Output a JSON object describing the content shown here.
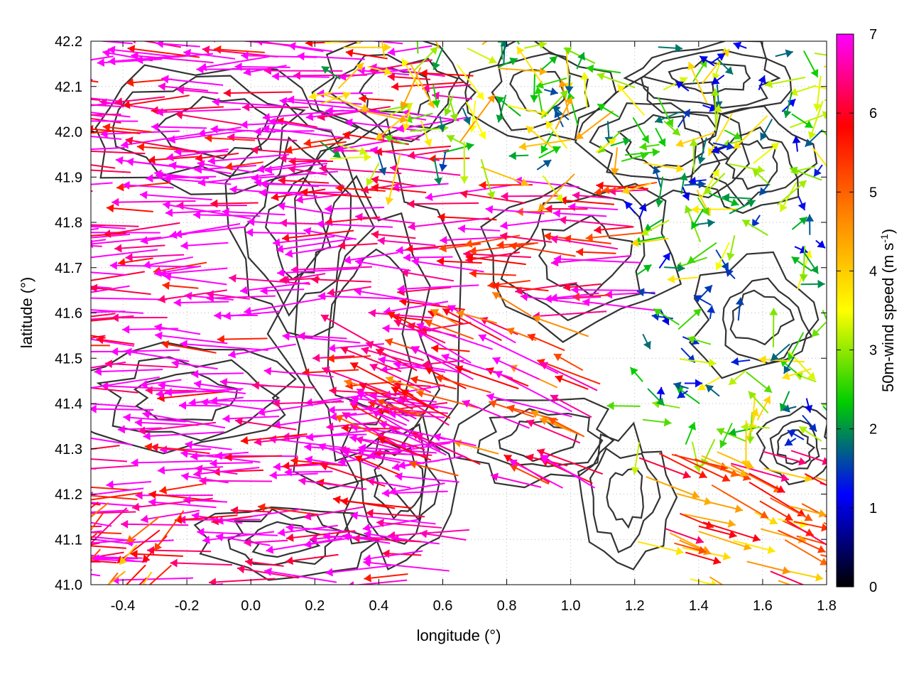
{
  "chart_data": {
    "type": "vector-field",
    "xlabel": "longitude (°)",
    "ylabel": "latitude (°)",
    "xlim": [
      -0.5,
      1.8
    ],
    "ylim": [
      41.0,
      42.2
    ],
    "xticks": [
      "-0.4",
      "-0.2",
      "0.0",
      "0.2",
      "0.4",
      "0.6",
      "0.8",
      "1.0",
      "1.2",
      "1.4",
      "1.6",
      "1.8"
    ],
    "yticks": [
      "41.0",
      "41.1",
      "41.2",
      "41.3",
      "41.4",
      "41.5",
      "41.6",
      "41.7",
      "41.8",
      "41.9",
      "42.0",
      "42.1",
      "42.2"
    ],
    "grid": "dotted",
    "colorbar": {
      "label": "50m-wind speed (m s-1)",
      "range": [
        0,
        7
      ],
      "ticks": [
        "0",
        "1",
        "2",
        "3",
        "4",
        "5",
        "6",
        "7"
      ],
      "colormap": [
        "#000000",
        "#0000ff",
        "#00cc00",
        "#ffff00",
        "#ff8800",
        "#ff0000",
        "#ff00ff"
      ]
    },
    "vector_regions": [
      {
        "lon_range": [
          -0.5,
          0.7
        ],
        "lat_range": [
          41.0,
          42.2
        ],
        "speed_ms": 7,
        "direction": "from east"
      },
      {
        "lon_range": [
          0.7,
          1.3
        ],
        "lat_range": [
          41.6,
          41.9
        ],
        "speed_ms": 6.5,
        "direction": "from east"
      },
      {
        "lon_range": [
          0.4,
          1.1
        ],
        "lat_range": [
          41.2,
          41.6
        ],
        "speed_ms": 6,
        "direction": "from east-northeast"
      },
      {
        "lon_range": [
          0.2,
          1.2
        ],
        "lat_range": [
          41.9,
          42.2
        ],
        "speed_ms": 3,
        "direction": "variable"
      },
      {
        "lon_range": [
          1.2,
          1.8
        ],
        "lat_range": [
          41.3,
          42.2
        ],
        "speed_ms": 2.5,
        "direction": "variable"
      },
      {
        "lon_range": [
          1.2,
          1.8
        ],
        "lat_range": [
          41.0,
          41.3
        ],
        "speed_ms": 5,
        "direction": "from west-southwest"
      },
      {
        "lon_range": [
          -0.5,
          -0.2
        ],
        "lat_range": [
          41.0,
          41.2
        ],
        "speed_ms": 5,
        "direction": "from south-east"
      }
    ]
  }
}
